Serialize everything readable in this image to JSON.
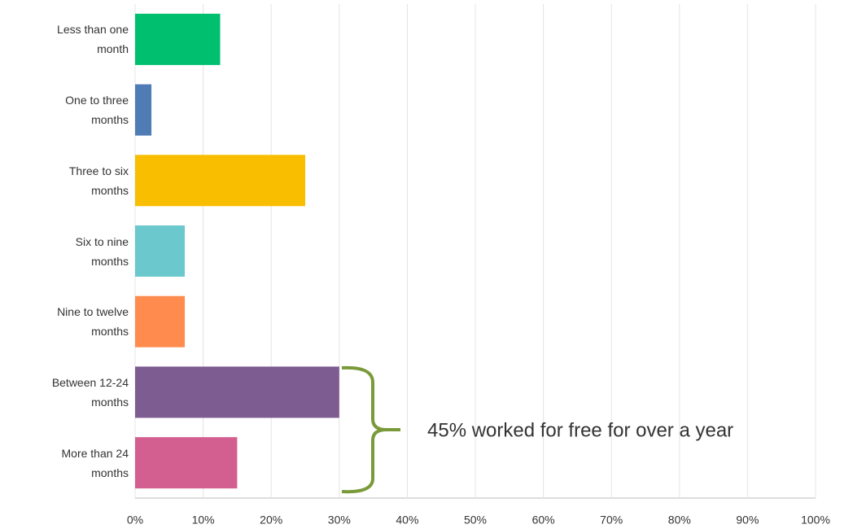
{
  "chart_data": {
    "type": "barh",
    "categories": [
      "Less than one month",
      "One to three months",
      "Three to six months",
      "Six to nine months",
      "Nine to twelve months",
      "Between 12-24 months",
      "More than 24 months"
    ],
    "values": [
      12.5,
      2.4,
      25,
      7.3,
      7.3,
      30,
      15
    ],
    "colors": [
      "#00bf6f",
      "#507cb6",
      "#f9be00",
      "#6bc8cd",
      "#ff8b4f",
      "#7d5c91",
      "#d25f90"
    ],
    "xlim": [
      0,
      100
    ],
    "xticks": [
      {
        "value": 0,
        "label": "0%"
      },
      {
        "value": 10,
        "label": "10%"
      },
      {
        "value": 20,
        "label": "20%"
      },
      {
        "value": 30,
        "label": "30%"
      },
      {
        "value": 40,
        "label": "40%"
      },
      {
        "value": 50,
        "label": "50%"
      },
      {
        "value": 60,
        "label": "60%"
      },
      {
        "value": 70,
        "label": "70%"
      },
      {
        "value": 80,
        "label": "80%"
      },
      {
        "value": 90,
        "label": "90%"
      },
      {
        "value": 100,
        "label": "100%"
      }
    ],
    "grid": true,
    "annotation": "45% worked for free for over a year"
  }
}
